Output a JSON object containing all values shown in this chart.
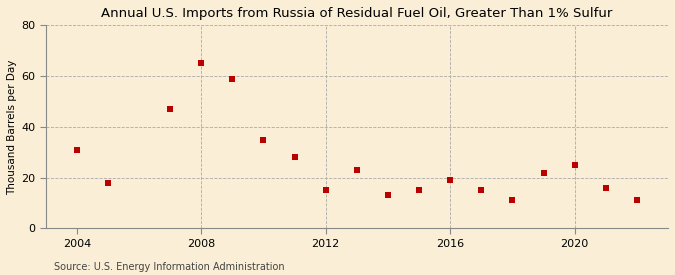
{
  "title": "Annual U.S. Imports from Russia of Residual Fuel Oil, Greater Than 1% Sulfur",
  "ylabel": "Thousand Barrels per Day",
  "source": "Source: U.S. Energy Information Administration",
  "years": [
    2004,
    2005,
    2007,
    2008,
    2009,
    2010,
    2011,
    2012,
    2013,
    2014,
    2015,
    2016,
    2017,
    2018,
    2019,
    2020,
    2021,
    2022
  ],
  "values": [
    31,
    18,
    47,
    65,
    59,
    35,
    28,
    15,
    23,
    13,
    15,
    19,
    15,
    11,
    22,
    25,
    16,
    11
  ],
  "ylim": [
    0,
    80
  ],
  "yticks": [
    0,
    20,
    40,
    60,
    80
  ],
  "xticks": [
    2004,
    2008,
    2012,
    2016,
    2020
  ],
  "vlines": [
    2008,
    2012,
    2016,
    2020
  ],
  "xlim": [
    2003.0,
    2023.0
  ],
  "marker_color": "#bb0000",
  "marker": "s",
  "marker_size": 4,
  "bg_color": "#faefd6",
  "grid_color": "#aaaaaa",
  "grid_linestyle": "--",
  "title_fontsize": 9.5,
  "label_fontsize": 7.5,
  "tick_fontsize": 8,
  "source_fontsize": 7
}
